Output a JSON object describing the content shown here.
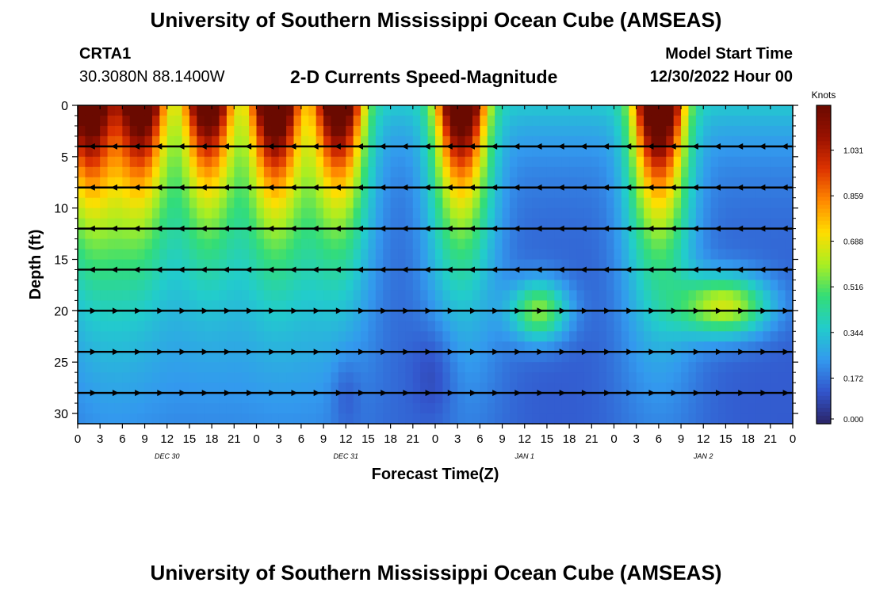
{
  "header": {
    "title": "University of Southern Mississippi Ocean Cube (AMSEAS)",
    "station_id": "CRTA1",
    "station_coords": "30.3080N  88.1400W",
    "subtitle": "2-D Currents Speed-Magnitude",
    "model_start_label": "Model Start Time",
    "model_start_value": "12/30/2022 Hour 00"
  },
  "footer": {
    "title": "University of Southern Mississippi Ocean Cube (AMSEAS)"
  },
  "colors": {
    "scale": [
      "#2a2466",
      "#3355cc",
      "#3399ee",
      "#22cccc",
      "#33dd77",
      "#aaee22",
      "#ffdd00",
      "#ff8800",
      "#dd3300",
      "#991100",
      "#6a0a00"
    ]
  },
  "chart_data": {
    "type": "heatmap",
    "title": "2-D Currents Speed-Magnitude",
    "xlabel": "Forecast Time(Z)",
    "ylabel": "Depth (ft)",
    "x_unit": "hours from model start",
    "xlim": [
      0,
      96
    ],
    "ylim": [
      0,
      31
    ],
    "y_inverted": true,
    "xticks": [
      0,
      3,
      6,
      9,
      12,
      15,
      18,
      21,
      24,
      27,
      30,
      33,
      36,
      39,
      42,
      45,
      48,
      51,
      54,
      57,
      60,
      63,
      66,
      69,
      72,
      75,
      78,
      81,
      84,
      87,
      90,
      93,
      96
    ],
    "xtick_labels": [
      "0",
      "3",
      "6",
      "9",
      "12",
      "15",
      "18",
      "21",
      "0",
      "3",
      "6",
      "9",
      "12",
      "15",
      "18",
      "21",
      "0",
      "3",
      "6",
      "9",
      "12",
      "15",
      "18",
      "21",
      "0",
      "3",
      "6",
      "9",
      "12",
      "15",
      "18",
      "21",
      "0"
    ],
    "yticks": [
      0,
      5,
      10,
      15,
      20,
      25,
      30
    ],
    "ytick_labels": [
      "0",
      "5",
      "10",
      "15",
      "20",
      "25",
      "30"
    ],
    "date_labels": [
      {
        "hour": 12,
        "label": "DEC 30"
      },
      {
        "hour": 36,
        "label": "DEC 31"
      },
      {
        "hour": 60,
        "label": "JAN 1"
      },
      {
        "hour": 84,
        "label": "JAN 2"
      }
    ],
    "colorbar": {
      "label": "Knots",
      "min": 0.0,
      "max": 1.2,
      "ticks": [
        0.0,
        0.172,
        0.344,
        0.516,
        0.688,
        0.859,
        1.031
      ],
      "tick_labels": [
        "0.000",
        "0.172",
        "0.344",
        "0.516",
        "0.688",
        "0.859",
        "1.031"
      ]
    },
    "surface_maxima": [
      {
        "hour": 1.5,
        "speed": 1.2
      },
      {
        "hour": 8.5,
        "speed": 1.15
      },
      {
        "hour": 17.5,
        "speed": 1.1
      },
      {
        "hour": 26.5,
        "speed": 1.25
      },
      {
        "hour": 35,
        "speed": 1.15
      },
      {
        "hour": 51.5,
        "speed": 1.2
      },
      {
        "hour": 78,
        "speed": 1.3
      }
    ],
    "vector_depths_ft": [
      4,
      8,
      12,
      16,
      20,
      24,
      28
    ],
    "vectors": [
      {
        "depth": 4,
        "direction": "west",
        "hours": [
          0,
          96
        ]
      },
      {
        "depth": 8,
        "direction": "west",
        "hours": [
          0,
          96
        ]
      },
      {
        "depth": 12,
        "direction": "west",
        "hours": [
          0,
          96
        ]
      },
      {
        "depth": 16,
        "direction": "west",
        "hours": [
          0,
          96
        ]
      },
      {
        "depth": 20,
        "direction": "east",
        "hours": [
          0,
          96
        ]
      },
      {
        "depth": 24,
        "direction": "east",
        "hours": [
          0,
          96
        ]
      },
      {
        "depth": 28,
        "direction": "east",
        "hours": [
          0,
          96
        ]
      }
    ]
  }
}
